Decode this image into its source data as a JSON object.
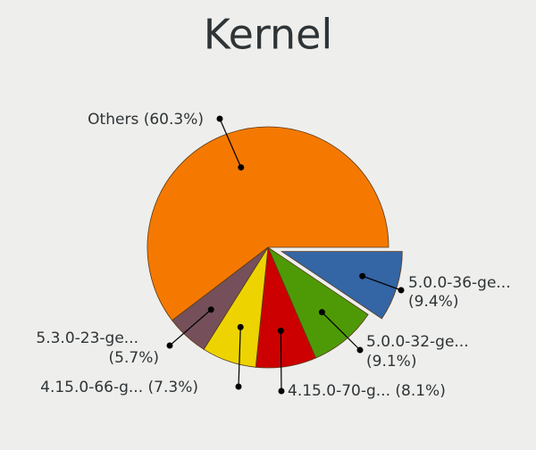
{
  "chart_data": {
    "type": "pie",
    "title": "Kernel",
    "categories": [
      "5.0.0-36-ge...",
      "5.0.0-32-ge...",
      "4.15.0-70-g...",
      "4.15.0-66-g...",
      "5.3.0-23-ge...",
      "Others"
    ],
    "values": [
      9.4,
      9.1,
      8.1,
      7.3,
      5.7,
      60.3
    ],
    "value_labels": [
      "(9.4%)",
      "(9.1%)",
      "(8.1%)",
      "(7.3%)",
      "(5.7%)",
      "(60.3%)"
    ],
    "colors": [
      "#3465a4",
      "#4e9a06",
      "#cc0000",
      "#edd400",
      "#75505b",
      "#f57900"
    ],
    "explode": [
      true,
      false,
      false,
      false,
      false,
      false
    ]
  }
}
